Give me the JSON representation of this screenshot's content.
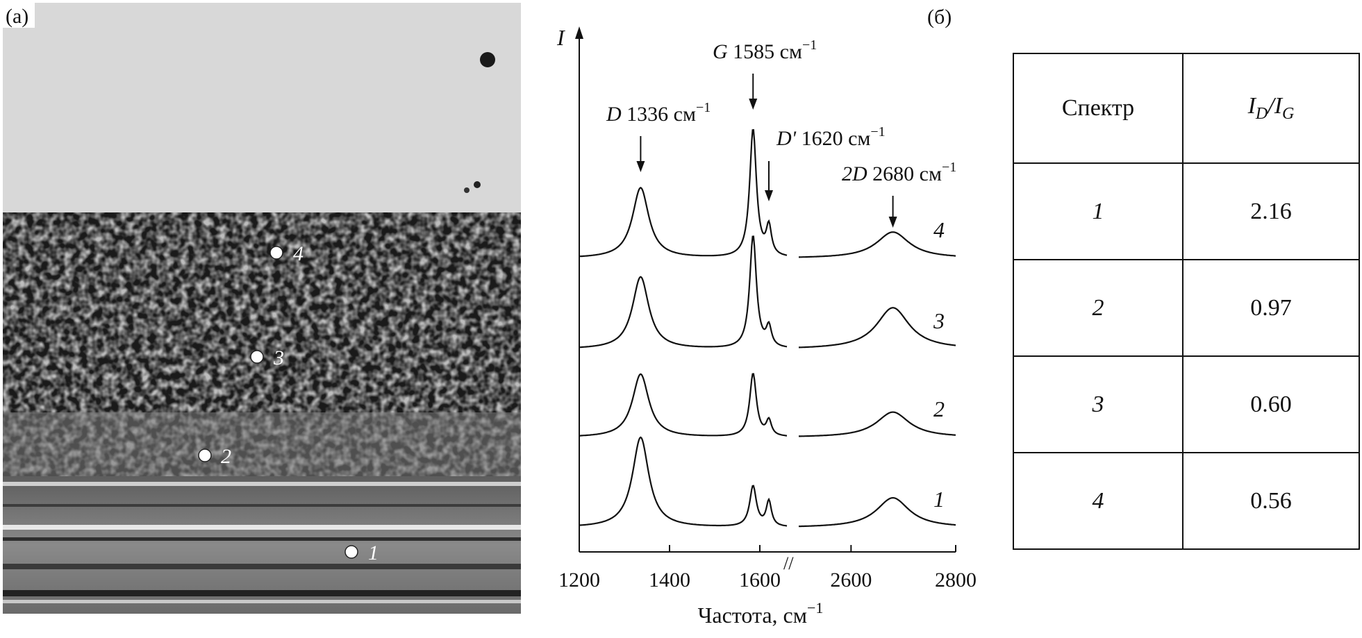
{
  "panel_a": {
    "label": "(а)",
    "markers": [
      "1",
      "2",
      "3",
      "4"
    ]
  },
  "panel_b": {
    "label": "(б)"
  },
  "chart_data": {
    "type": "line",
    "title": "",
    "xlabel": "Частота, см",
    "xlabel_sup": "−1",
    "ylabel": "I",
    "x_ticks": [
      "1200",
      "1400",
      "1600",
      "2600",
      "2800"
    ],
    "x_break": "//",
    "segments": [
      {
        "xlim": [
          1200,
          1660
        ]
      },
      {
        "xlim": [
          2500,
          2800
        ]
      }
    ],
    "annotations": [
      {
        "symbol": "D",
        "text": "1336 см",
        "sup": "−1",
        "x": 1336
      },
      {
        "symbol": "G",
        "text": "1585 см",
        "sup": "−1",
        "x": 1585
      },
      {
        "symbol": "D'",
        "text": "1620 см",
        "sup": "−1",
        "x": 1620
      },
      {
        "symbol": "2D",
        "text": "2680 см",
        "sup": "−1",
        "x": 2680
      }
    ],
    "series": [
      {
        "name": "1",
        "peaks": {
          "D": 1.0,
          "G": 0.45,
          "Dp": 0.28,
          "2D": 0.33
        }
      },
      {
        "name": "2",
        "peaks": {
          "D": 0.7,
          "G": 0.7,
          "Dp": 0.17,
          "2D": 0.28
        }
      },
      {
        "name": "3",
        "peaks": {
          "D": 0.8,
          "G": 1.25,
          "Dp": 0.22,
          "2D": 0.46
        }
      },
      {
        "name": "4",
        "peaks": {
          "D": 0.78,
          "G": 1.42,
          "Dp": 0.32,
          "2D": 0.29
        }
      }
    ]
  },
  "table": {
    "header": {
      "col1": "Спектр",
      "col2_main": "I",
      "col2_sub1": "D",
      "col2_sep": "/I",
      "col2_sub2": "G"
    },
    "rows": [
      {
        "spectrum": "1",
        "ratio": "2.16"
      },
      {
        "spectrum": "2",
        "ratio": "0.97"
      },
      {
        "spectrum": "3",
        "ratio": "0.60"
      },
      {
        "spectrum": "4",
        "ratio": "0.56"
      }
    ]
  },
  "colors": {
    "ink": "#111111",
    "photo_light": "#d9d9d9",
    "photo_dark": "#161616",
    "photo_mid": "#7a7a7a"
  }
}
